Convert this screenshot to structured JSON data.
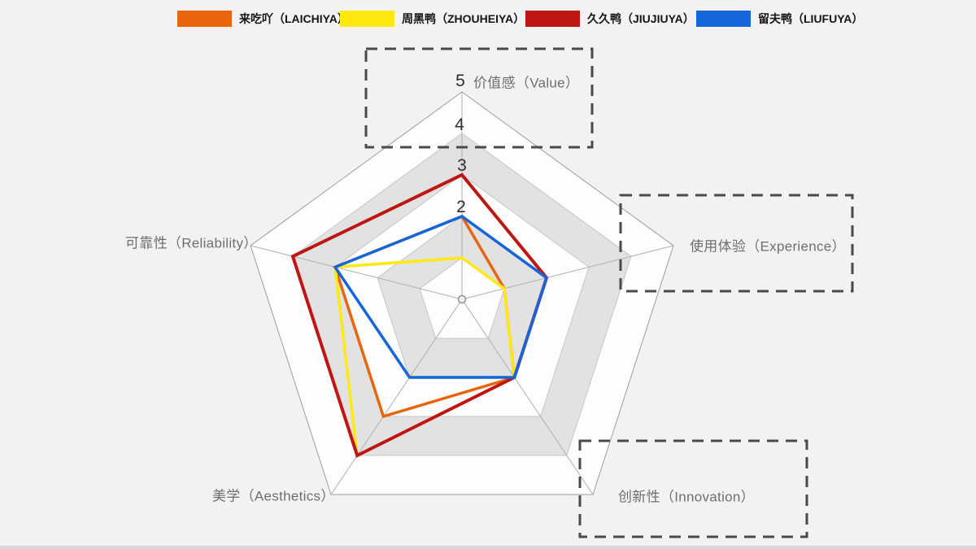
{
  "page": {
    "background": "#F2F2F2",
    "description_note": "Pentagon radar chart comparing four brands on five dimensions, scale 0-5"
  },
  "chart_data": {
    "type": "radar",
    "axes": [
      {
        "key": "value",
        "label": "价值感（Value）",
        "highlighted": true
      },
      {
        "key": "experience",
        "label": "使用体验（Experience）",
        "highlighted": true
      },
      {
        "key": "innovation",
        "label": "创新性（Innovation）",
        "highlighted": true
      },
      {
        "key": "aesthetics",
        "label": "美学（Aesthetics）",
        "highlighted": false
      },
      {
        "key": "reliability",
        "label": "可靠性（Reliability）",
        "highlighted": false
      }
    ],
    "scale": {
      "min": 0,
      "max": 5,
      "ring_values": [
        1,
        2,
        3,
        4,
        5
      ],
      "visible_ticks": [
        "5",
        "4",
        "3",
        "2"
      ]
    },
    "series": [
      {
        "name": "来吃吖（LAICHIYA）",
        "color": "#E8650D",
        "values": [
          2,
          1,
          2,
          3,
          3
        ]
      },
      {
        "name": "周黑鸭（ZHOUHEIYA）",
        "color": "#FFE912",
        "values": [
          1,
          1,
          2,
          4,
          3
        ]
      },
      {
        "name": "久久鸭（JIUJIUYA）",
        "color": "#BE1612",
        "values": [
          3,
          2,
          2,
          4,
          4
        ]
      },
      {
        "name": "留夫鸭（LIUFUYA）",
        "color": "#1565DB",
        "values": [
          2,
          2,
          2,
          2,
          3
        ]
      }
    ],
    "grid": {
      "bands_alternate": true,
      "band_light": "#FDFDFD",
      "band_dark": "#E2E2E2",
      "outer_stroke": "#9C9C9C",
      "ring_stroke": "#C6C6C6",
      "spoke_stroke": "#AFAFAF"
    },
    "legend_position": "top",
    "highlight_box_color": "#4A4A4A"
  }
}
